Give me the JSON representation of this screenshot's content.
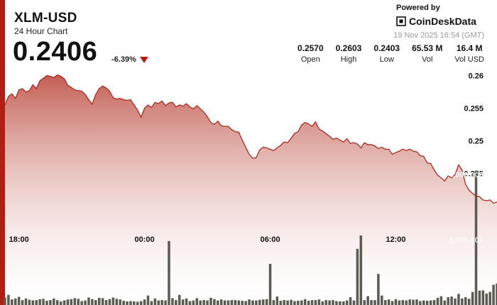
{
  "header": {
    "title": "XLM-USD",
    "subtitle": "24 Hour Chart",
    "price": "0.2406",
    "change": "-6.39%",
    "powered_by": "Powered by",
    "brand": "CoinDeskData",
    "timestamp": "19 Nov 2025 16:54 (GMT)"
  },
  "stats": [
    {
      "value": "0.2570",
      "label": "Open"
    },
    {
      "value": "0.2603",
      "label": "High"
    },
    {
      "value": "0.2403",
      "label": "Low"
    },
    {
      "value": "65.53 M",
      "label": "Vol"
    },
    {
      "value": "16.4 M",
      "label": "Vol USD"
    }
  ],
  "colors": {
    "accent": "#b01e14",
    "line": "#a82a1e",
    "fill_top": "#c0564a",
    "fill_bottom": "#ffffff",
    "volume": "#5b5b52"
  },
  "chart_data": {
    "type": "area",
    "title": "",
    "xlabel": "",
    "ylabel": "",
    "ylim": [
      0.2385,
      0.2605
    ],
    "y_ticks": [
      0.245,
      0.25,
      0.255,
      0.26
    ],
    "y_tick_labels": [
      "0.245",
      "0.25",
      "0.255",
      "0.26"
    ],
    "x_ticks": [
      {
        "label": "18:00",
        "index": 4
      },
      {
        "label": "00:00",
        "index": 40
      },
      {
        "label": "06:00",
        "index": 76
      },
      {
        "label": "12:00",
        "index": 112
      }
    ],
    "volume_ticks": [
      2000000,
      4000000
    ],
    "volume_tick_labels": [
      "2,000,000",
      "4,000,000"
    ],
    "volume_max": 4600000,
    "grid": true,
    "price": [
      0.2555,
      0.2568,
      0.2572,
      0.2565,
      0.2578,
      0.258,
      0.2575,
      0.2577,
      0.2586,
      0.258,
      0.2592,
      0.2596,
      0.26,
      0.2599,
      0.2597,
      0.2601,
      0.2599,
      0.2595,
      0.2585,
      0.2582,
      0.2578,
      0.2577,
      0.2576,
      0.2571,
      0.2563,
      0.2556,
      0.2571,
      0.258,
      0.2584,
      0.2581,
      0.2576,
      0.2566,
      0.2564,
      0.2565,
      0.2563,
      0.2562,
      0.2563,
      0.2555,
      0.2547,
      0.2536,
      0.255,
      0.2555,
      0.2551,
      0.2559,
      0.2557,
      0.2561,
      0.2554,
      0.2558,
      0.2559,
      0.2552,
      0.2555,
      0.2553,
      0.2557,
      0.2552,
      0.2549,
      0.2554,
      0.2549,
      0.2544,
      0.2537,
      0.2528,
      0.2525,
      0.253,
      0.2523,
      0.2522,
      0.2522,
      0.2517,
      0.2514,
      0.2513,
      0.2501,
      0.249,
      0.2479,
      0.2473,
      0.2474,
      0.2486,
      0.249,
      0.2489,
      0.2487,
      0.2485,
      0.2489,
      0.2493,
      0.2498,
      0.2497,
      0.2504,
      0.2511,
      0.2514,
      0.2524,
      0.2528,
      0.2526,
      0.2522,
      0.2529,
      0.2518,
      0.2515,
      0.2511,
      0.2507,
      0.2502,
      0.2504,
      0.2501,
      0.2498,
      0.2503,
      0.2496,
      0.2497,
      0.2495,
      0.2489,
      0.2497,
      0.2494,
      0.2494,
      0.2492,
      0.2488,
      0.249,
      0.2487,
      0.2487,
      0.2479,
      0.2482,
      0.2484,
      0.2487,
      0.2485,
      0.2487,
      0.2484,
      0.2483,
      0.2477,
      0.2476,
      0.2466,
      0.2465,
      0.2455,
      0.2447,
      0.2443,
      0.2438,
      0.2446,
      0.2443,
      0.2448,
      0.2463,
      0.2455,
      0.2433,
      0.2424,
      0.2419,
      0.2415,
      0.2414,
      0.2409,
      0.2408,
      0.2409,
      0.2404,
      0.2406
    ],
    "volume": [
      230000,
      310000,
      170000,
      200000,
      250000,
      150000,
      200000,
      160000,
      140000,
      150000,
      180000,
      190000,
      130000,
      150000,
      200000,
      150000,
      110000,
      140000,
      170000,
      180000,
      210000,
      190000,
      120000,
      140000,
      230000,
      180000,
      150000,
      220000,
      210000,
      150000,
      180000,
      230000,
      190000,
      170000,
      130000,
      110000,
      120000,
      110000,
      100000,
      120000,
      170000,
      290000,
      120000,
      200000,
      140000,
      150000,
      140000,
      1960000,
      210000,
      150000,
      310000,
      170000,
      200000,
      120000,
      140000,
      210000,
      140000,
      150000,
      140000,
      220000,
      180000,
      140000,
      170000,
      140000,
      140000,
      150000,
      150000,
      140000,
      130000,
      120000,
      170000,
      140000,
      140000,
      160000,
      170000,
      180000,
      1260000,
      150000,
      260000,
      130000,
      150000,
      140000,
      160000,
      120000,
      130000,
      140000,
      180000,
      130000,
      150000,
      150000,
      170000,
      110000,
      150000,
      140000,
      150000,
      120000,
      110000,
      110000,
      140000,
      240000,
      140000,
      1720000,
      2130000,
      150000,
      270000,
      150000,
      150000,
      950000,
      290000,
      150000,
      170000,
      120000,
      180000,
      140000,
      150000,
      140000,
      170000,
      160000,
      170000,
      120000,
      140000,
      130000,
      140000,
      150000,
      220000,
      270000,
      140000,
      240000,
      260000,
      200000,
      340000,
      200000,
      240000,
      190000,
      400000,
      4120000,
      440000,
      450000,
      350000,
      400000,
      620000,
      660000,
      1530000,
      1530000
    ]
  }
}
